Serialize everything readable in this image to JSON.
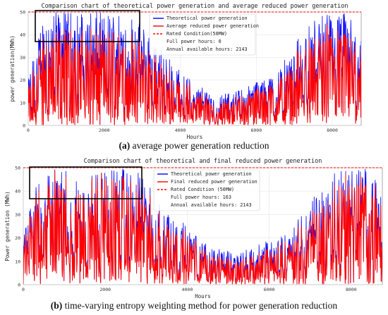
{
  "chart_data": [
    {
      "type": "line",
      "title": "Comparison chart of theoretical power generation and average reduced power generation",
      "xlabel": "Hours",
      "ylabel": "power generation(MWh)",
      "xlim": [
        0,
        8760
      ],
      "ylim": [
        0,
        50
      ],
      "xticks": [
        0,
        2000,
        4000,
        6000,
        8000
      ],
      "yticks": [
        0,
        10,
        20,
        30,
        40,
        50
      ],
      "legend_position": "top-center",
      "grid": true,
      "series": [
        {
          "name": "Theoretical power generation",
          "color": "#0000ff",
          "style": "solid"
        },
        {
          "name": "Average reduced power generation",
          "color": "#ff0000",
          "style": "solid"
        },
        {
          "name": "Rated Condition(50MW)",
          "color": "#ff0000",
          "style": "dashed",
          "value": 50
        }
      ],
      "legend_notes": [
        "Full power hours: 0",
        "Annual available hours: 2143"
      ],
      "x": [
        0,
        400,
        800,
        1200,
        1600,
        2000,
        2400,
        2800,
        3200,
        3600,
        4000,
        4400,
        4800,
        5200,
        5600,
        6000,
        6400,
        6800,
        7200,
        7600,
        8000,
        8400,
        8760
      ],
      "theoretical_envelope": [
        20,
        50,
        50,
        50,
        50,
        50,
        50,
        48,
        40,
        32,
        25,
        18,
        15,
        14,
        16,
        20,
        22,
        30,
        42,
        48,
        50,
        50,
        40
      ],
      "reduced_envelope": [
        18,
        44,
        44,
        44,
        44,
        44,
        44,
        42,
        36,
        29,
        23,
        16,
        13,
        12,
        14,
        18,
        20,
        27,
        38,
        44,
        46,
        46,
        36
      ]
    },
    {
      "type": "line",
      "title": "Comparison chart of theoretical and final reduced power generation",
      "xlabel": "Hours",
      "ylabel": "Power generation (MWh)",
      "xlim": [
        0,
        8760
      ],
      "ylim": [
        0,
        50
      ],
      "xticks": [
        0,
        2000,
        4000,
        6000,
        8000
      ],
      "yticks": [
        0,
        10,
        20,
        30,
        40,
        50
      ],
      "legend_position": "top-center",
      "grid": true,
      "series": [
        {
          "name": "Theoretical power generation",
          "color": "#0000ff",
          "style": "solid"
        },
        {
          "name": "Final reduced power generation",
          "color": "#ff0000",
          "style": "solid"
        },
        {
          "name": "Rated Condition (50MW)",
          "color": "#ff0000",
          "style": "dashed",
          "value": 50
        }
      ],
      "legend_notes": [
        "Full power hours: 163",
        "Annual available hours: 2143"
      ],
      "x": [
        0,
        400,
        800,
        1200,
        1600,
        2000,
        2400,
        2800,
        3200,
        3600,
        4000,
        4400,
        4800,
        5200,
        5600,
        6000,
        6400,
        6800,
        7200,
        7600,
        8000,
        8400,
        8760
      ],
      "theoretical_envelope": [
        20,
        50,
        50,
        50,
        50,
        50,
        50,
        48,
        40,
        32,
        25,
        18,
        15,
        14,
        16,
        20,
        22,
        30,
        42,
        48,
        50,
        50,
        40
      ],
      "reduced_envelope": [
        18,
        50,
        50,
        50,
        50,
        50,
        48,
        45,
        37,
        29,
        23,
        16,
        13,
        12,
        14,
        18,
        20,
        27,
        38,
        45,
        50,
        50,
        37
      ]
    }
  ],
  "captions": [
    {
      "letter": "(a)",
      "text": " average power generation reduction"
    },
    {
      "letter": "(b)",
      "text": " time-varying entropy weighting method for power generation reduction"
    }
  ]
}
